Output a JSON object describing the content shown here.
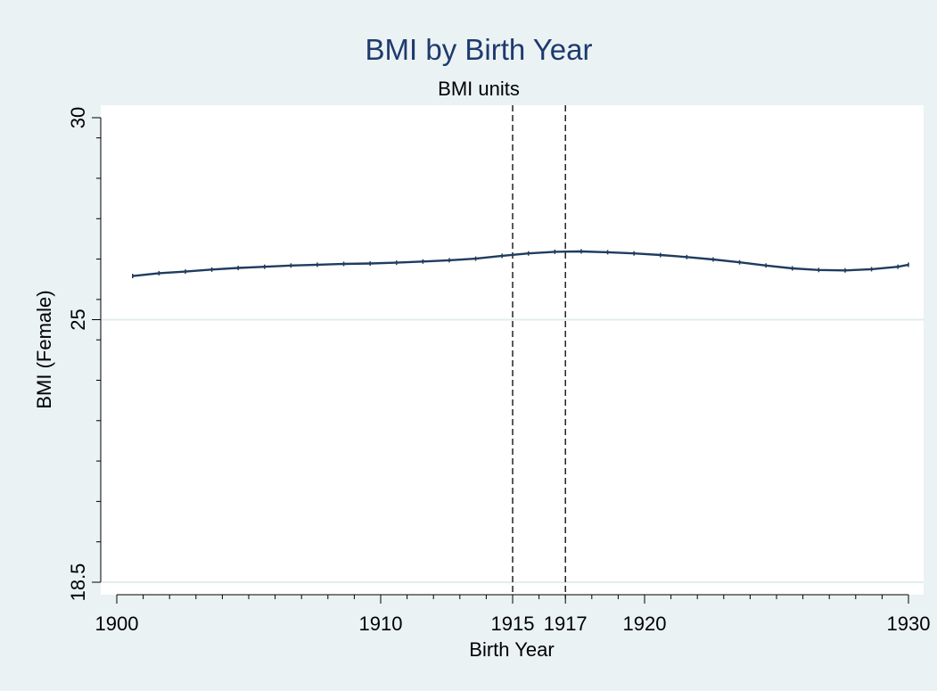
{
  "chart_data": {
    "type": "line",
    "title": "BMI by Birth Year",
    "subtitle": "BMI units",
    "xlabel": "Birth Year",
    "ylabel": "BMI (Female)",
    "xlim": [
      1900,
      1930
    ],
    "ylim": [
      18.5,
      30
    ],
    "x_ticks": [
      1900,
      1910,
      1915,
      1917,
      1920,
      1930
    ],
    "x_tick_labels": [
      "1900",
      "1910",
      "1915",
      "1917",
      "1920",
      "1930"
    ],
    "y_ticks": [
      18.5,
      25,
      30
    ],
    "y_tick_labels": [
      "18.5",
      "25",
      "30"
    ],
    "y_gridlines": [
      18.5,
      25
    ],
    "reference_lines_x": [
      1915,
      1917
    ],
    "series": [
      {
        "x": [
          1900.6,
          1901.6,
          1902.6,
          1903.6,
          1904.6,
          1905.6,
          1906.6,
          1907.6,
          1908.6,
          1909.6,
          1910.6,
          1911.6,
          1912.6,
          1913.6,
          1914.6,
          1915.6,
          1916.6,
          1917.6,
          1918.6,
          1919.6,
          1920.6,
          1921.6,
          1922.6,
          1923.6,
          1924.6,
          1925.6,
          1926.6,
          1927.6,
          1928.6,
          1929.6,
          1930
        ],
        "y": [
          26.08,
          26.15,
          26.19,
          26.24,
          26.28,
          26.31,
          26.34,
          26.36,
          26.38,
          26.39,
          26.41,
          26.44,
          26.47,
          26.51,
          26.58,
          26.64,
          26.68,
          26.69,
          26.67,
          26.64,
          26.6,
          26.55,
          26.49,
          26.42,
          26.34,
          26.27,
          26.23,
          26.22,
          26.25,
          26.31,
          26.36
        ]
      }
    ]
  },
  "colors": {
    "background": "#eaf2f3",
    "plot_area": "#ffffff",
    "title": "#1e3a6e",
    "series_line": "#1f3c5f",
    "gridline": "#e2eeee",
    "reference_line": "#000000"
  }
}
